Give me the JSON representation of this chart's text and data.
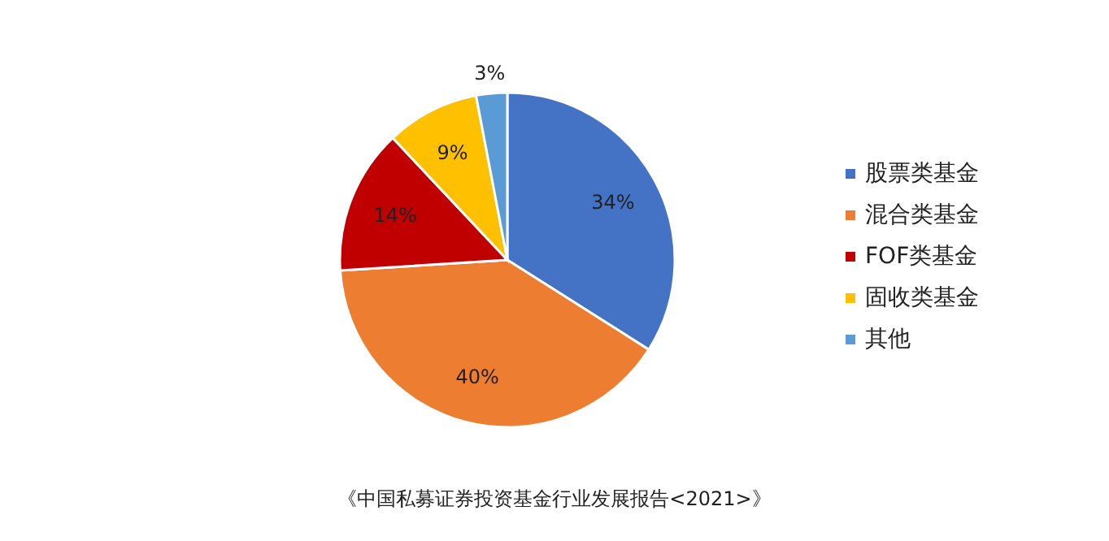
{
  "chart_data": {
    "type": "pie",
    "categories": [
      "股票类基金",
      "混合类基金",
      "FOF类基金",
      "固收类基金",
      "其他"
    ],
    "values": [
      34,
      40,
      14,
      9,
      3
    ],
    "colors": [
      "#4472c4",
      "#ed7d31",
      "#c00000",
      "#ffc000",
      "#5b9bd5"
    ],
    "value_labels": [
      "34%",
      "40%",
      "14%",
      "9%",
      "3%"
    ],
    "legend": "right",
    "annotations": [
      "《中国私募证券投资基金行业发展报告<2021>》"
    ]
  }
}
